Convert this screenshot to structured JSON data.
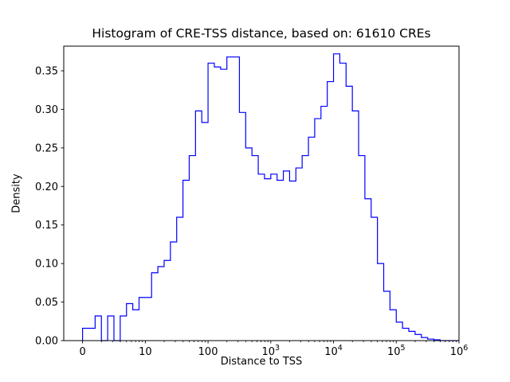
{
  "figure": {
    "title": "Histogram of CRE-TSS distance, based on: 61610 CREs",
    "xlabel": "Distance to TSS",
    "ylabel": "Density"
  },
  "chart_data": {
    "type": "bar",
    "subtype": "step-histogram",
    "title": "Histogram of CRE-TSS distance, based on: 61610 CREs",
    "xlabel": "Distance to TSS",
    "ylabel": "Density",
    "n_samples": 61610,
    "x_scale": "symlog",
    "line_color": "#0000ff",
    "grid": false,
    "legend": "none",
    "ylim": [
      0,
      0.382
    ],
    "xlim_log10": [
      -0.3,
      6.0
    ],
    "y_ticks": [
      0.0,
      0.05,
      0.1,
      0.15,
      0.2,
      0.25,
      0.3,
      0.35
    ],
    "y_tick_labels": [
      "0.00",
      "0.05",
      "0.10",
      "0.15",
      "0.20",
      "0.25",
      "0.30",
      "0.35"
    ],
    "x_ticks_log10": [
      0,
      1,
      2,
      3,
      4,
      5,
      6
    ],
    "x_tick_labels": [
      "0",
      "10",
      "100",
      "10^3",
      "10^4",
      "10^5",
      "10^6"
    ],
    "bin_edges_log10": [
      0.0,
      0.1,
      0.2,
      0.3,
      0.4,
      0.5,
      0.6,
      0.7,
      0.8,
      0.9,
      1.0,
      1.1,
      1.2,
      1.3,
      1.4,
      1.5,
      1.6,
      1.7,
      1.8,
      1.9,
      2.0,
      2.1,
      2.2,
      2.3,
      2.4,
      2.5,
      2.6,
      2.7,
      2.8,
      2.9,
      3.0,
      3.1,
      3.2,
      3.3,
      3.4,
      3.5,
      3.6,
      3.7,
      3.8,
      3.9,
      4.0,
      4.1,
      4.2,
      4.3,
      4.4,
      4.5,
      4.6,
      4.7,
      4.8,
      4.9,
      5.0,
      5.1,
      5.2,
      5.3,
      5.4,
      5.5,
      5.6,
      5.7,
      5.8,
      5.9,
      6.0
    ],
    "densities": [
      0.016,
      0.016,
      0.032,
      0.0,
      0.032,
      0.0,
      0.032,
      0.048,
      0.04,
      0.056,
      0.056,
      0.088,
      0.096,
      0.104,
      0.128,
      0.16,
      0.208,
      0.24,
      0.298,
      0.283,
      0.36,
      0.355,
      0.352,
      0.368,
      0.368,
      0.296,
      0.25,
      0.24,
      0.216,
      0.21,
      0.216,
      0.208,
      0.22,
      0.207,
      0.224,
      0.24,
      0.264,
      0.288,
      0.304,
      0.336,
      0.372,
      0.36,
      0.33,
      0.298,
      0.24,
      0.184,
      0.16,
      0.1,
      0.064,
      0.04,
      0.024,
      0.016,
      0.012,
      0.008,
      0.004,
      0.002,
      0.001,
      0.0,
      0.0,
      0.0
    ]
  }
}
